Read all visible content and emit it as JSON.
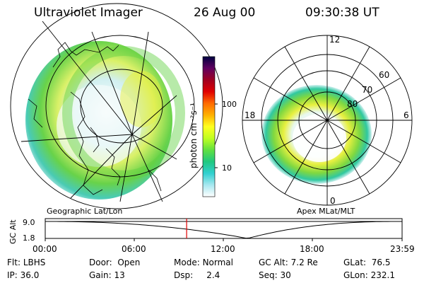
{
  "header": {
    "instrument": "Ultraviolet Imager",
    "date": "26 Aug 00",
    "time": "09:30:38 UT"
  },
  "geo_panel": {
    "label": "Geographic Lat/Lon"
  },
  "polar_panel": {
    "label": "Apex MLat/MLT",
    "mlt_labels": {
      "top": "12",
      "left": "18",
      "right": "6",
      "bottom": "0"
    },
    "lat_labels": [
      "60",
      "70",
      "80"
    ]
  },
  "colorbar": {
    "unit_label": "photon cm⁻²s⁻¹",
    "ticks": [
      "100",
      "10"
    ],
    "scale": "log",
    "colors": [
      "#000040",
      "#600060",
      "#a00020",
      "#e00000",
      "#ff6a00",
      "#ffb000",
      "#ffff20",
      "#c0ff20",
      "#60e040",
      "#20c880",
      "#30d0d0",
      "#a8e8f0",
      "#ffffff"
    ]
  },
  "altitude_plot": {
    "ylabel": "GC Alt",
    "yticks": [
      "9.0",
      "1.8"
    ],
    "xticks": [
      "00:00",
      "06:00",
      "12:00",
      "18:00",
      "23:59"
    ],
    "current_time_hours": 9.51,
    "marker_color": "#e00000"
  },
  "info": {
    "filter_label": "Flt:",
    "filter_value": "LBHS",
    "ip_label": "IP:",
    "ip_value": "36.0",
    "door_label": "Door:",
    "door_value": "Open",
    "gain_label": "Gain:",
    "gain_value": "13",
    "mode_label": "Mode:",
    "mode_value": "Normal",
    "dsp_label": "Dsp:",
    "dsp_value": "2.4",
    "gcalt_label": "GC Alt:",
    "gcalt_value": "7.2 Re",
    "seq_label": "Seq:",
    "seq_value": "30",
    "glat_label": "GLat:",
    "glat_value": "76.5",
    "glon_label": "GLon:",
    "glon_value": "232.1"
  }
}
